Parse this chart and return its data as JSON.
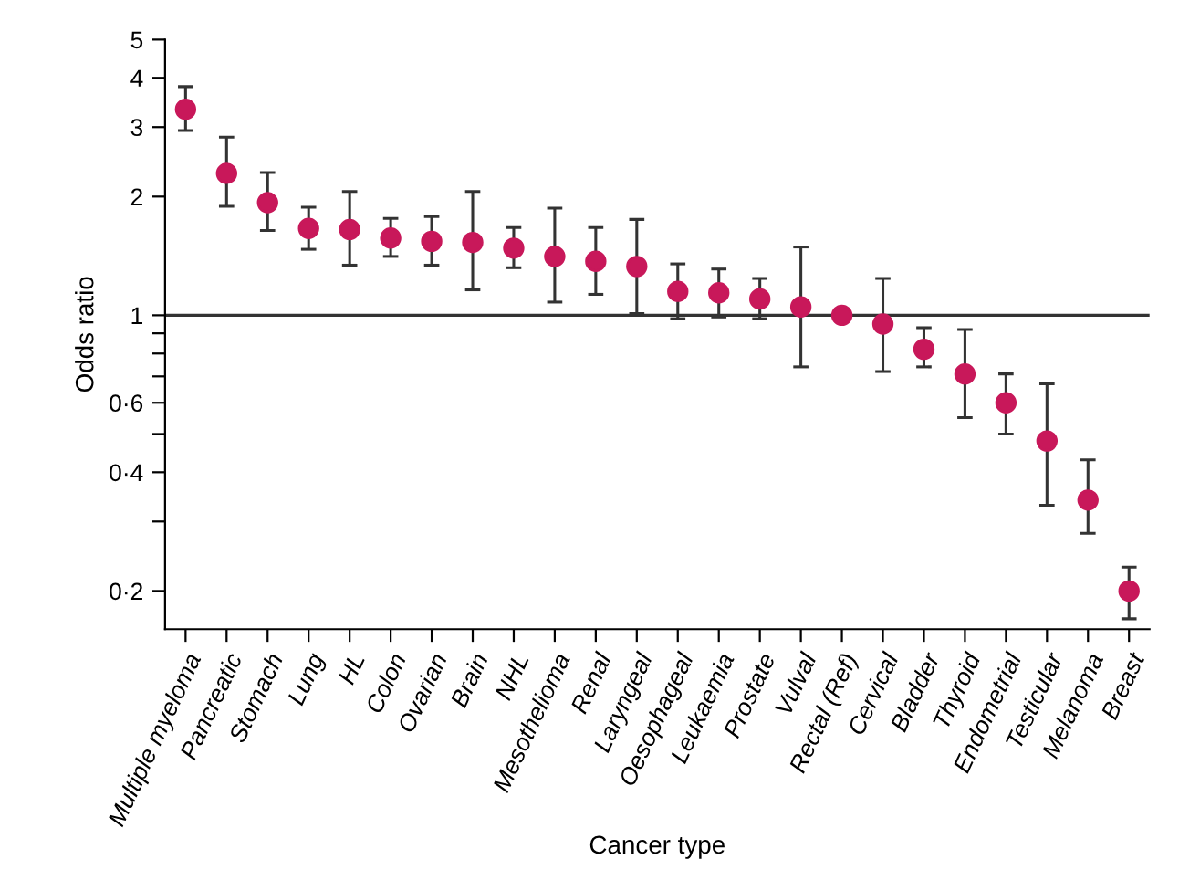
{
  "chart_data": {
    "type": "scatter",
    "xlabel": "Cancer type",
    "ylabel": "Odds ratio",
    "log": true,
    "marker": "circle",
    "grid": false,
    "categories": [
      "Multiple myeloma",
      "Pancreatic",
      "Stomach",
      "Lung",
      "HL",
      "Colon",
      "Ovarian",
      "Brain",
      "NHL",
      "Mesothelioma",
      "Renal",
      "Laryngeal",
      "Oesophageal",
      "Leukaemia",
      "Prostate",
      "Vulval",
      "Rectal (Ref)",
      "Cervical",
      "Bladder",
      "Thyroid",
      "Endometrial",
      "Testicular",
      "Melanoma",
      "Breast"
    ],
    "series": [
      {
        "color": "#c8185a",
        "values": [
          3.33,
          2.29,
          1.93,
          1.66,
          1.65,
          1.57,
          1.54,
          1.53,
          1.48,
          1.41,
          1.37,
          1.33,
          1.15,
          1.14,
          1.1,
          1.05,
          1.0,
          0.95,
          0.82,
          0.71,
          0.6,
          0.48,
          0.34,
          0.2
        ],
        "errors": [
          [
            2.94,
            3.8
          ],
          [
            1.89,
            2.83
          ],
          [
            1.64,
            2.3
          ],
          [
            1.47,
            1.88
          ],
          [
            1.34,
            2.06
          ],
          [
            1.41,
            1.76
          ],
          [
            1.34,
            1.78
          ],
          [
            1.16,
            2.06
          ],
          [
            1.32,
            1.67
          ],
          [
            1.08,
            1.87
          ],
          [
            1.13,
            1.67
          ],
          [
            1.01,
            1.75
          ],
          [
            0.98,
            1.35
          ],
          [
            0.99,
            1.31
          ],
          [
            0.98,
            1.24
          ],
          [
            0.74,
            1.49
          ],
          null,
          [
            0.72,
            1.24
          ],
          [
            0.74,
            0.93
          ],
          [
            0.55,
            0.92
          ],
          [
            0.5,
            0.71
          ],
          [
            0.33,
            0.67
          ],
          [
            0.28,
            0.43
          ],
          [
            0.17,
            0.23
          ]
        ]
      }
    ],
    "ylim": [
      0.16,
      5
    ],
    "yticks": [
      {
        "value": 0.2,
        "label": "0·2"
      },
      {
        "value": 0.3,
        "label": null
      },
      {
        "value": 0.4,
        "label": "0·4"
      },
      {
        "value": 0.5,
        "label": null
      },
      {
        "value": 0.6,
        "label": "0·6"
      },
      {
        "value": 0.7,
        "label": null
      },
      {
        "value": 0.8,
        "label": null
      },
      {
        "value": 0.9,
        "label": null
      },
      1,
      2,
      3,
      4,
      5
    ],
    "ref_lines": [
      {
        "axis": "y",
        "value": 1,
        "color": "#333333",
        "line_style": "solid"
      }
    ]
  }
}
